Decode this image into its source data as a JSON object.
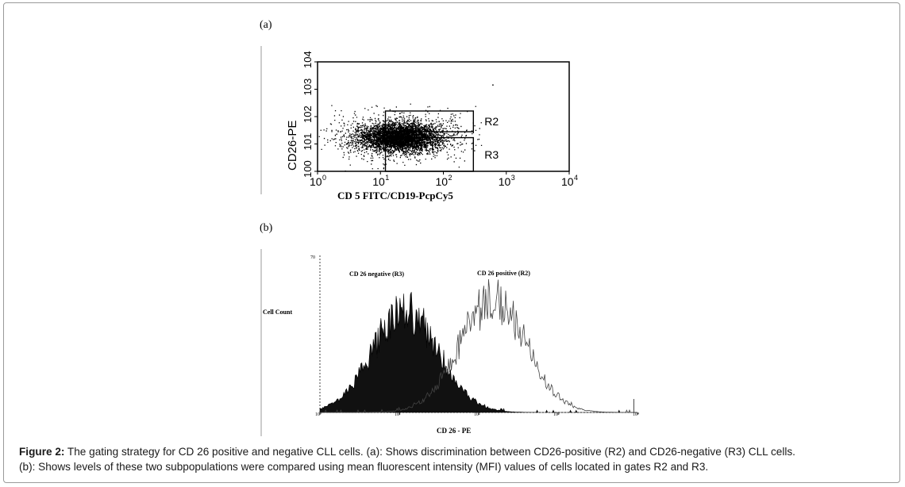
{
  "figure": {
    "panel_a_label": "(a)",
    "panel_b_label": "(b)",
    "caption_lead": "Figure 2:",
    "caption_line1": " The gating strategy for CD 26 positive and negative CLL cells. (a): Shows discrimination between CD26-positive (R2) and CD26-negative (R3) CLL cells.",
    "caption_line2": "(b): Shows levels of these two subpopulations were compared using mean fluorescent intensity (MFI) values of cells located in gates R2 and R3."
  },
  "chart_data": [
    {
      "type": "scatter",
      "panel": "(a)",
      "xlabel": "CD 5 FITC/CD19-PcpCy5",
      "ylabel": "CD26-PE",
      "x_scale": "log",
      "y_scale": "log",
      "xlim": [
        1,
        10000
      ],
      "ylim": [
        1,
        10000
      ],
      "x_ticks": [
        "10",
        "10",
        "10",
        "10",
        "10"
      ],
      "x_tick_exponents": [
        "0",
        "1",
        "2",
        "3",
        "4"
      ],
      "y_ticks": [
        "10",
        "10",
        "10",
        "10",
        "10"
      ],
      "y_tick_exponents": [
        "0",
        "1",
        "2",
        "3",
        "4"
      ],
      "gates": [
        {
          "name": "R2",
          "x_range": [
            12,
            300
          ],
          "y_range": [
            28,
            160
          ]
        },
        {
          "name": "R3",
          "x_range": [
            12,
            300
          ],
          "y_range": [
            1,
            17
          ]
        }
      ],
      "cluster_center": {
        "x": 20,
        "y": 18
      }
    },
    {
      "type": "histogram",
      "panel": "(b)",
      "xlabel": "CD 26 - PE",
      "ylabel": "Cell Count",
      "x_scale": "log",
      "xlim": [
        1,
        10000
      ],
      "x_ticks": [
        "10⁰",
        "10¹",
        "10²",
        "10³",
        "10⁴"
      ],
      "y_top_tick": "70",
      "series": [
        {
          "name": "CD 26 negative (R3)",
          "fill": "solid",
          "peak_x": 12,
          "peak_count": 45
        },
        {
          "name": "CD 26 positive (R2)",
          "fill": "open",
          "peak_x": 150,
          "peak_count": 50
        }
      ]
    }
  ]
}
